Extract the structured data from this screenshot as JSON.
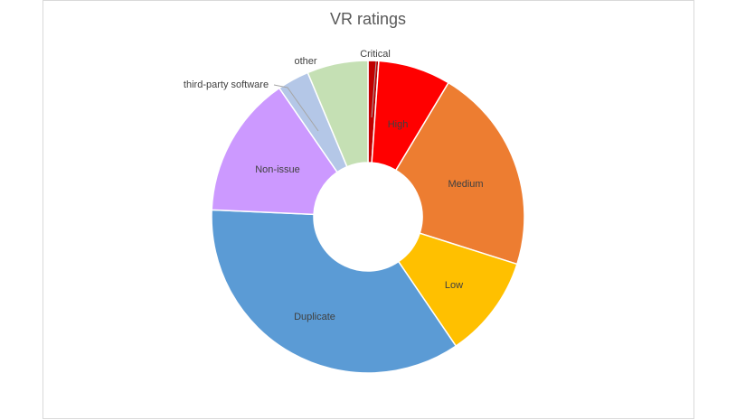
{
  "chart_data": {
    "type": "donut",
    "title": "VR ratings",
    "categories": [
      "Critical",
      "High",
      "Medium",
      "Low",
      "Duplicate",
      "Non-issue",
      "third-party software",
      "other"
    ],
    "values": [
      1.1,
      7.5,
      21.3,
      10.6,
      35.2,
      14.7,
      3.3,
      6.3
    ],
    "colors": [
      "#c00000",
      "#ff0000",
      "#ed7d31",
      "#ffc000",
      "#5b9bd5",
      "#cc99ff",
      "#b4c7e7",
      "#c5e0b4"
    ]
  }
}
